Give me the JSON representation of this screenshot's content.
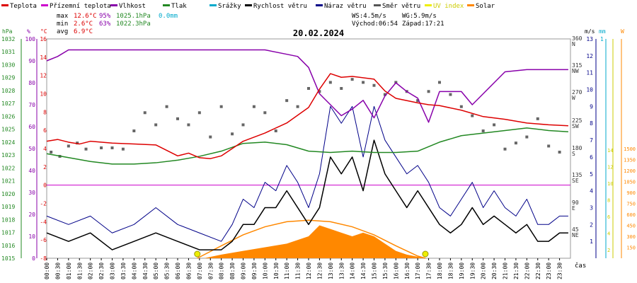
{
  "legend": [
    {
      "label": "Teplota",
      "color": "#dd0000"
    },
    {
      "label": "Přízemní teplota",
      "color": "#cc00cc"
    },
    {
      "label": "Vlhkost",
      "color": "#8800aa"
    },
    {
      "label": "Tlak",
      "color": "#228822"
    },
    {
      "label": "Srážky",
      "color": "#00aacc"
    },
    {
      "label": "Rychlost větru",
      "color": "#000000"
    },
    {
      "label": "Náraz větru",
      "color": "#000088"
    },
    {
      "label": "Směr větru",
      "color": "#555555"
    },
    {
      "label": "UV index",
      "color": "#eeee00"
    },
    {
      "label": "Solar",
      "color": "#ff8800"
    }
  ],
  "stats": {
    "max_label": "max",
    "max_temp": "12.6°C",
    "max_hum": "95%",
    "max_press": "1025.1hPa",
    "max_rain": "0.0mm",
    "min_label": "min",
    "min_temp": "2.6°C",
    "min_hum": "63%",
    "min_press": "1022.3hPa",
    "avg_label": "avg",
    "avg_temp": "6.9°C",
    "ws": "WS:4.5m/s",
    "wg": "WG:5.9m/s",
    "sunrise": "Východ:06:54",
    "sunset": "Západ:17:21"
  },
  "chart_data": {
    "type": "line",
    "title": "20.02.2024",
    "xlabel": "čas",
    "x_ticks": [
      "00:00",
      "00:30",
      "01:00",
      "01:30",
      "02:00",
      "02:30",
      "03:00",
      "03:30",
      "04:00",
      "04:30",
      "05:00",
      "05:30",
      "06:00",
      "06:30",
      "07:00",
      "07:30",
      "08:00",
      "08:30",
      "09:00",
      "09:30",
      "10:00",
      "10:30",
      "11:00",
      "11:30",
      "12:00",
      "12:30",
      "13:00",
      "13:30",
      "14:00",
      "14:30",
      "15:00",
      "15:30",
      "16:00",
      "16:30",
      "17:00",
      "17:30",
      "18:00",
      "18:30",
      "19:00",
      "19:30",
      "20:00",
      "20:30",
      "21:00",
      "21:30",
      "22:00",
      "22:30",
      "23:00",
      "23:30"
    ],
    "axes": {
      "press": {
        "unit": "hPa",
        "ticks": [
          "1032",
          "1031",
          "1030",
          "1029",
          "1028",
          "1027",
          "1026",
          "1025",
          "1024",
          "1023",
          "1022",
          "1021",
          "1020",
          "1019",
          "1018",
          "1017",
          "1016",
          "1015"
        ],
        "range": [
          1015,
          1032
        ]
      },
      "hum": {
        "unit": "%",
        "ticks": [
          "100",
          "90",
          "80",
          "70",
          "60",
          "50",
          "40",
          "30",
          "20",
          "10",
          "0"
        ],
        "range": [
          0,
          100
        ]
      },
      "temp": {
        "unit": "°C",
        "ticks": [
          "16",
          "14",
          "12",
          "10",
          "8",
          "6",
          "4",
          "2",
          "0",
          "-2",
          "-4",
          "-6",
          "-8"
        ],
        "range": [
          -8,
          16
        ]
      },
      "dir": {
        "ticks": [
          "360",
          "N",
          "315",
          "NW",
          "270",
          "W",
          "225",
          "SW",
          "180",
          "S",
          "135",
          "SE",
          "90",
          "E",
          "45",
          "NE"
        ]
      },
      "wind": {
        "unit": "m/s",
        "ticks": [
          "13",
          "12",
          "11",
          "10",
          "9",
          "8",
          "7",
          "6",
          "5",
          "4",
          "3",
          "2",
          "1"
        ],
        "range": [
          0,
          13
        ]
      },
      "rain": {
        "unit": "mm",
        "ticks": [
          "1"
        ]
      },
      "uv": {
        "ticks": [
          "14",
          "12",
          "10",
          "8",
          "6",
          "4",
          "2"
        ]
      },
      "solar": {
        "unit": "W",
        "ticks": [
          "1500",
          "1350",
          "1200",
          "1050",
          "900",
          "750",
          "600",
          "450",
          "300",
          "150"
        ],
        "range": [
          0,
          1500
        ]
      }
    },
    "series": [
      {
        "name": "Teplota",
        "x": [
          0,
          0.5,
          1,
          1.5,
          2,
          3,
          4,
          5,
          6,
          6.5,
          7,
          7.5,
          8,
          8.5,
          9,
          10,
          11,
          12,
          12.5,
          13,
          13.5,
          14,
          15,
          15.5,
          16,
          17,
          17.5,
          18,
          19,
          20,
          21,
          22,
          23,
          23.9
        ],
        "values": [
          4.8,
          5,
          4.7,
          4.5,
          4.8,
          4.6,
          4.5,
          4.4,
          3.2,
          3.5,
          3.0,
          2.9,
          3.2,
          4.0,
          4.8,
          5.7,
          6.8,
          8.5,
          10.5,
          12.2,
          11.8,
          11.9,
          11.6,
          10.3,
          9.5,
          9.0,
          8.8,
          8.7,
          8.2,
          7.5,
          7.2,
          6.8,
          6.6,
          6.5
        ]
      },
      {
        "name": "Přízemní teplota",
        "values": [
          0,
          0
        ]
      },
      {
        "name": "Vlhkost",
        "x": [
          0,
          0.5,
          1,
          2,
          3,
          4,
          5,
          6,
          7,
          8,
          9,
          10,
          11,
          11.5,
          12,
          12.5,
          13,
          13.5,
          14,
          14.5,
          15,
          15.5,
          16,
          16.5,
          17,
          17.5,
          18,
          19,
          19.5,
          20,
          21,
          22,
          23,
          23.9
        ],
        "values": [
          90,
          92,
          95,
          95,
          95,
          95,
          95,
          95,
          95,
          95,
          95,
          95,
          93,
          92,
          87,
          75,
          70,
          65,
          68,
          72,
          64,
          74,
          80,
          76,
          73,
          62,
          76,
          76,
          70,
          75,
          85,
          86,
          86,
          86
        ]
      },
      {
        "name": "Tlak",
        "x": [
          0,
          1,
          2,
          3,
          4,
          5,
          6,
          7,
          8,
          9,
          10,
          11,
          12,
          13,
          14,
          15,
          16,
          17,
          18,
          19,
          20,
          21,
          22,
          23,
          23.9
        ],
        "values": [
          1023.1,
          1022.8,
          1022.5,
          1022.3,
          1022.3,
          1022.4,
          1022.6,
          1022.9,
          1023.3,
          1023.9,
          1024.0,
          1023.8,
          1023.3,
          1023.2,
          1023.3,
          1023.2,
          1023.2,
          1023.3,
          1024.0,
          1024.5,
          1024.7,
          1024.9,
          1025.1,
          1024.9,
          1024.8
        ]
      },
      {
        "name": "Rychlost větru",
        "x": [
          0,
          1,
          2,
          3,
          4,
          5,
          6,
          7,
          8,
          8.5,
          9,
          9.5,
          10,
          10.5,
          11,
          11.5,
          12,
          12.5,
          13,
          13.5,
          14,
          14.5,
          15,
          15.5,
          16,
          16.5,
          17,
          17.5,
          18,
          18.5,
          19,
          19.5,
          20,
          20.5,
          21,
          21.5,
          22,
          22.5,
          23,
          23.5,
          23.9
        ],
        "values": [
          1.5,
          1,
          1.5,
          0.5,
          1,
          1.5,
          1,
          0.5,
          0.5,
          1,
          2,
          2,
          3,
          3,
          4,
          3,
          2,
          3,
          6,
          5,
          6,
          4,
          7,
          5,
          4,
          3,
          4,
          3,
          2,
          1.5,
          2,
          3,
          2,
          2.5,
          2,
          1.5,
          2,
          1,
          1,
          1.5,
          1.5
        ]
      },
      {
        "name": "Náraz větru",
        "x": [
          0,
          1,
          2,
          3,
          4,
          5,
          6,
          7,
          8,
          8.5,
          9,
          9.5,
          10,
          10.5,
          11,
          11.5,
          12,
          12.5,
          13,
          13.5,
          14,
          14.5,
          15,
          15.5,
          16,
          16.5,
          17,
          17.5,
          18,
          18.5,
          19,
          19.5,
          20,
          20.5,
          21,
          21.5,
          22,
          22.5,
          23,
          23.5,
          23.9
        ],
        "values": [
          2.5,
          2,
          2.5,
          1.5,
          2,
          3,
          2,
          1.5,
          1,
          2,
          3.5,
          3,
          4.5,
          4,
          5.5,
          4.5,
          3,
          5,
          9,
          8,
          9,
          6,
          9,
          7,
          6,
          5,
          5.5,
          4.5,
          3,
          2.5,
          3.5,
          4.5,
          3,
          4,
          3,
          2.5,
          3.5,
          2,
          2,
          2.5,
          2.5
        ]
      },
      {
        "name": "Solar",
        "x": [
          7.2,
          8,
          9,
          10,
          11,
          12,
          12.5,
          13,
          13.5,
          14,
          14.5,
          15,
          15.5,
          16,
          16.5,
          17,
          17.3
        ],
        "values": [
          0,
          50,
          100,
          150,
          200,
          300,
          450,
          400,
          350,
          300,
          350,
          300,
          200,
          100,
          50,
          20,
          0
        ]
      }
    ],
    "clear_sky_solar": {
      "x": [
        6.9,
        8,
        9,
        10,
        11,
        12,
        13,
        14,
        15,
        16,
        17,
        17.35
      ],
      "values": [
        0,
        170,
        320,
        430,
        500,
        520,
        500,
        430,
        320,
        170,
        30,
        0
      ]
    },
    "wind_direction": {
      "x": [
        0.2,
        0.6,
        1,
        1.4,
        1.8,
        2.5,
        3,
        3.5,
        4,
        4.5,
        5,
        5.5,
        6,
        6.5,
        7,
        7.5,
        8,
        8.5,
        9,
        9.5,
        10,
        10.5,
        11,
        11.5,
        12,
        12.5,
        13,
        13.5,
        14,
        14.5,
        15,
        15.5,
        16,
        16.5,
        17,
        17.5,
        18,
        18.5,
        19,
        19.5,
        20,
        20.5,
        21,
        21.5,
        22,
        22.5,
        23,
        23.5
      ],
      "values": [
        185,
        178,
        195,
        200,
        190,
        192,
        192,
        190,
        220,
        250,
        230,
        260,
        240,
        230,
        250,
        210,
        260,
        215,
        230,
        260,
        250,
        220,
        270,
        260,
        290,
        285,
        300,
        290,
        305,
        300,
        295,
        280,
        300,
        285,
        270,
        285,
        300,
        280,
        260,
        245,
        220,
        230,
        190,
        200,
        210,
        240,
        195,
        185
      ]
    },
    "sun_markers": [
      "06:54",
      "17:21"
    ]
  }
}
